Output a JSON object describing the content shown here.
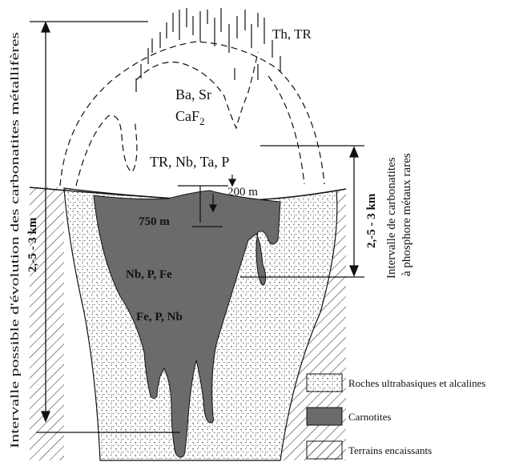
{
  "labels": {
    "th_tr": "Th, TR",
    "ba_sr": "Ba, Sr",
    "caf2_main": "CaF",
    "caf2_sub": "2",
    "tr_nb_ta_p": "TR, Nb, Ta, P",
    "depth_200": "200 m",
    "depth_750": "750 m",
    "nb_p_fe": "Nb, P, Fe",
    "fe_p_nb": "Fe, P, Nb",
    "left_range": "2,-5 - 3 km",
    "left_axis_title": "Intervalle possible d'évolution des carbonatites métallifères",
    "right_range": "2,-5 - 3 km",
    "right_axis_title_1": "Intervalle de carbonatites",
    "right_axis_title_2": "à phosphore métaux rares"
  },
  "legend": [
    {
      "label": "Roches ultrabasiques et alcalines",
      "pattern": "brick"
    },
    {
      "label": "Carnotites",
      "pattern": "solid-gray"
    },
    {
      "label": "Terrains encaissants",
      "pattern": "hatch"
    }
  ],
  "colors": {
    "carbonatite_fill": "#6b6b6b",
    "line": "#111111",
    "background": "#ffffff"
  }
}
